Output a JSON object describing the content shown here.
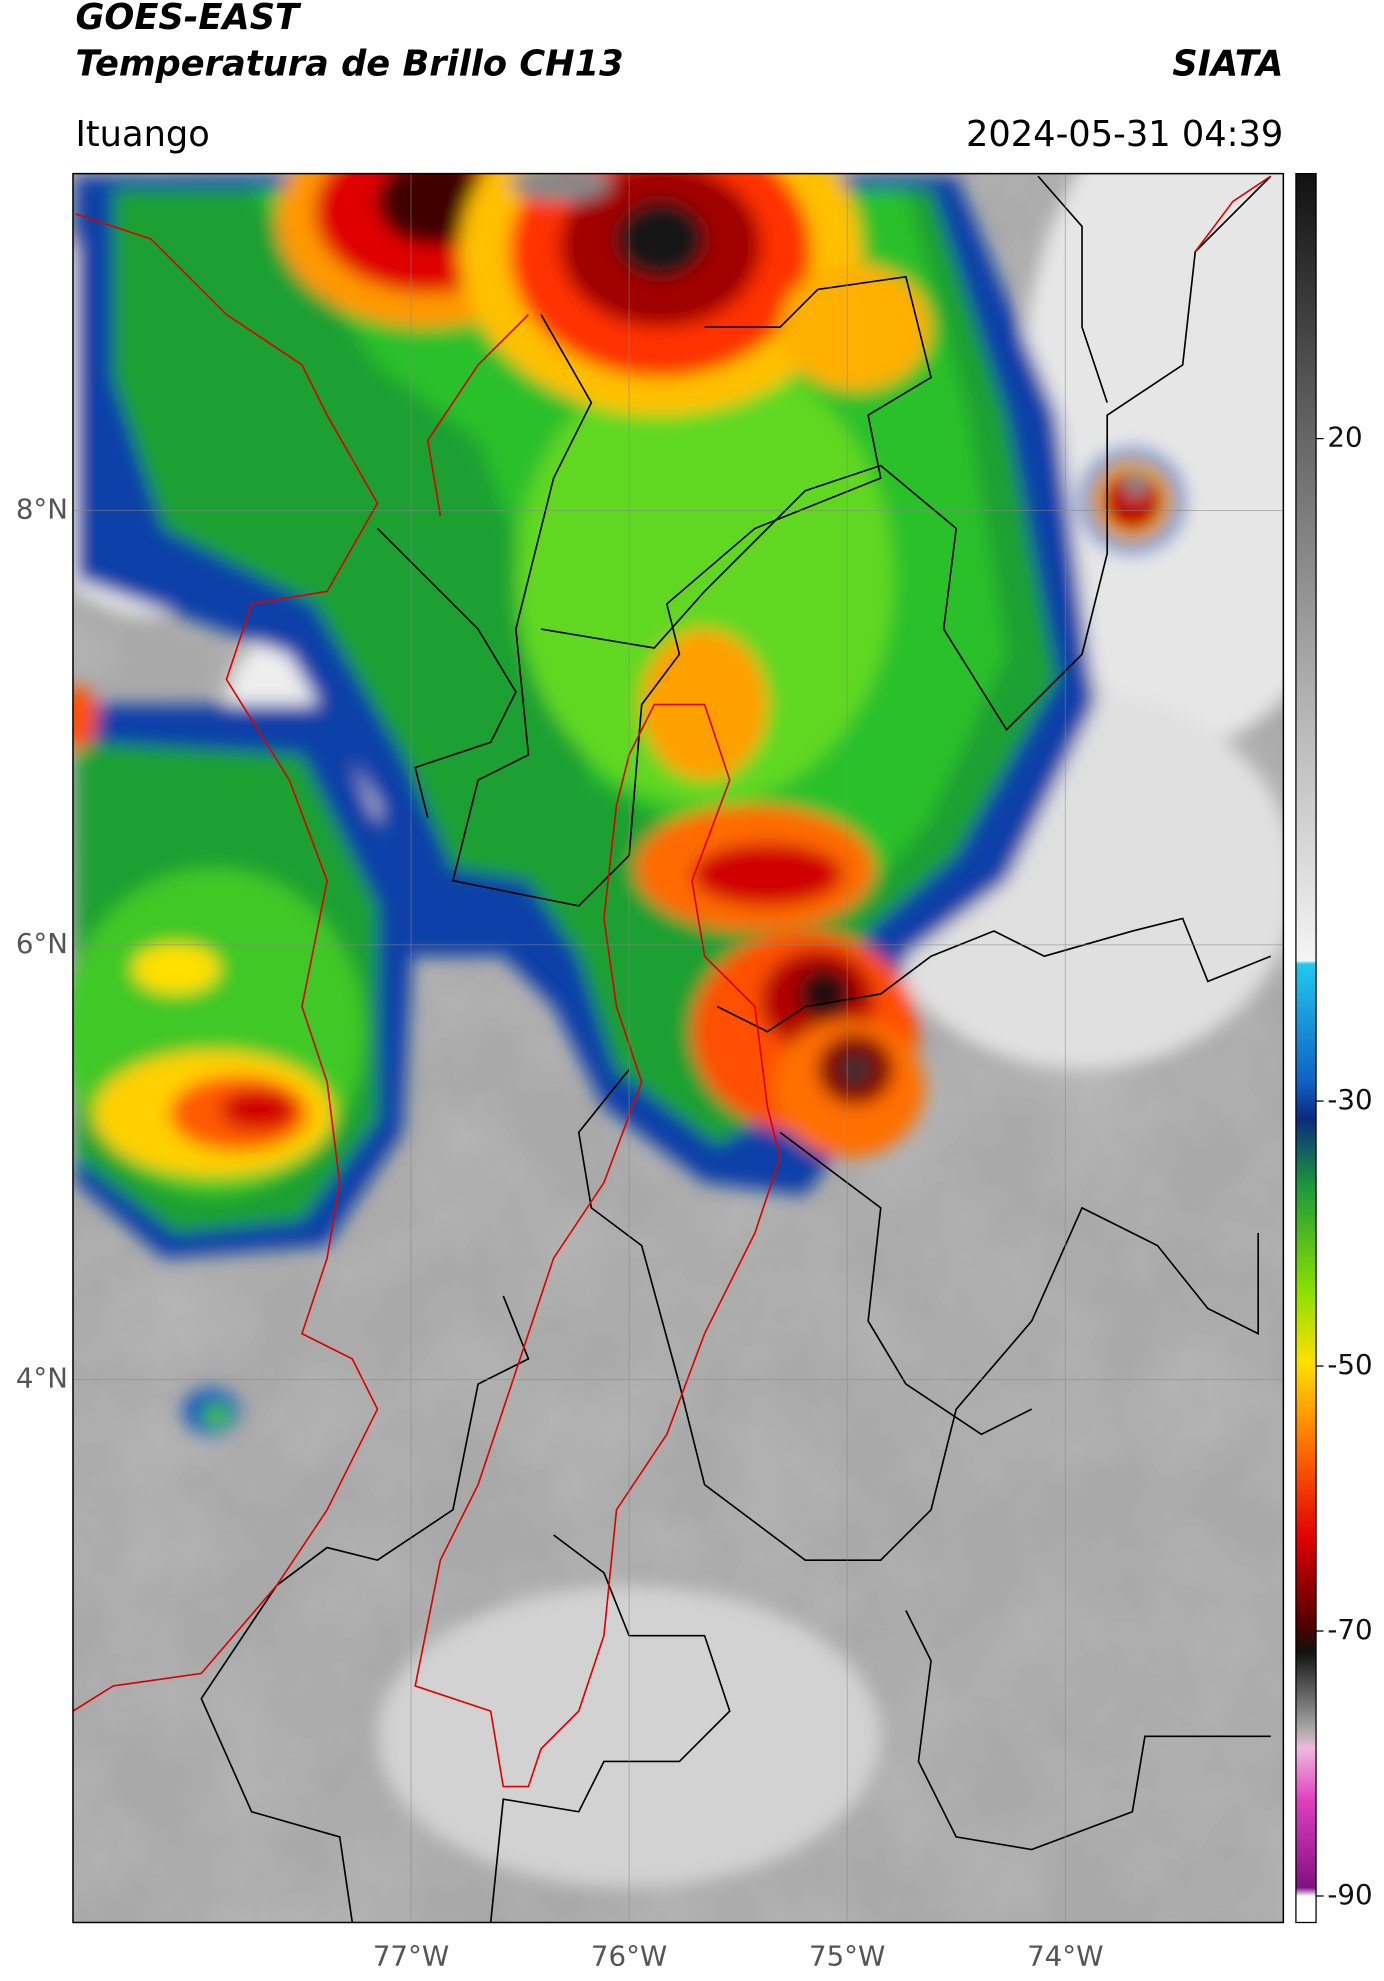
{
  "header": {
    "title": "GOES-EAST",
    "subtitle": "Temperatura de Brillo CH13",
    "brand": "SIATA",
    "location": "Ituango",
    "datetime": "2024-05-31 04:39"
  },
  "map": {
    "xlim": [
      -78.55,
      -73
    ],
    "ylim": [
      1.5,
      9.55
    ],
    "xticks": [
      {
        "value": -77,
        "label": "77°W"
      },
      {
        "value": -76,
        "label": "76°W"
      },
      {
        "value": -75,
        "label": "75°W"
      },
      {
        "value": -74,
        "label": "74°W"
      }
    ],
    "yticks": [
      {
        "value": 8,
        "label": "8°N"
      },
      {
        "value": 6,
        "label": "6°N"
      },
      {
        "value": 4,
        "label": "4°N"
      }
    ],
    "grid": true
  },
  "colorbar": {
    "lim": [
      -92,
      40
    ],
    "ticks": [
      20,
      -30,
      -50,
      -70,
      -90
    ]
  }
}
